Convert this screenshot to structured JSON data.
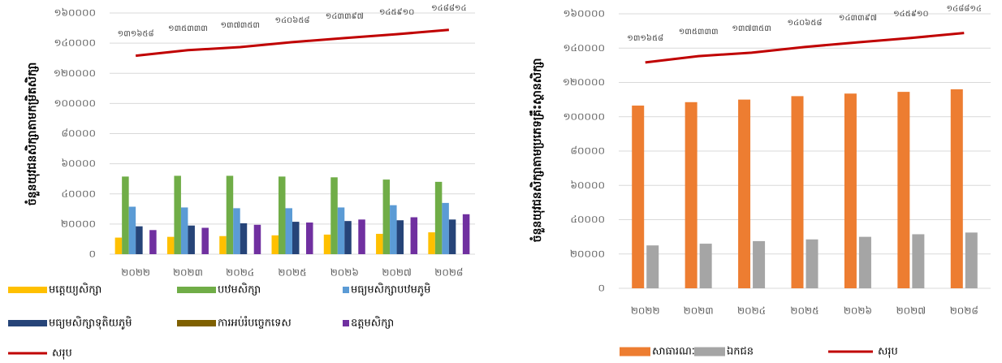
{
  "chart_data": [
    {
      "type": "bar",
      "y_label": "ចំនួនយុវជនសិក្សាតាមកម្រិតសិក្សា",
      "categories": [
        "២០២២",
        "២០២៣",
        "២០២៤",
        "២០២៥",
        "២០២៦",
        "២០២៧",
        "២០២៨"
      ],
      "ylim": [
        0,
        160000
      ],
      "yticks": [
        {
          "value": 0,
          "label": "០"
        },
        {
          "value": 20000,
          "label": "២០០០០"
        },
        {
          "value": 40000,
          "label": "៤០០០០"
        },
        {
          "value": 60000,
          "label": "៦០០០០"
        },
        {
          "value": 80000,
          "label": "៨០០០០"
        },
        {
          "value": 100000,
          "label": "១០០០០០"
        },
        {
          "value": 120000,
          "label": "១២០០០០"
        },
        {
          "value": 140000,
          "label": "១៤០០០០"
        },
        {
          "value": 160000,
          "label": "១៦០០០០"
        }
      ],
      "grid": true,
      "series": [
        {
          "name": "មត្តេយ្យសិក្សា",
          "color": "#ffc000",
          "values": [
            11000,
            11500,
            12000,
            12500,
            13000,
            13500,
            14500
          ]
        },
        {
          "name": "បឋមសិក្សា",
          "color": "#70ad47",
          "values": [
            51500,
            52000,
            52000,
            51500,
            51000,
            49500,
            48000
          ]
        },
        {
          "name": "មធ្យមសិក្សាបឋមភូមិ",
          "color": "#5b9bd5",
          "values": [
            31500,
            31000,
            30500,
            30500,
            31000,
            32500,
            34000
          ]
        },
        {
          "name": "មធ្យមសិក្សាទុតិយភូមិ",
          "color": "#264478",
          "values": [
            18500,
            19000,
            20500,
            21500,
            22000,
            22500,
            23000
          ]
        },
        {
          "name": "ការអប់រំបច្ចេកទេស",
          "color": "#7f6000",
          "values": [
            0,
            0,
            0,
            0,
            0,
            0,
            0
          ]
        },
        {
          "name": "ឧត្តមសិក្សា",
          "color": "#7030a0",
          "values": [
            16000,
            17500,
            19500,
            21000,
            23000,
            24500,
            26500
          ]
        },
        {
          "name": "សរុប",
          "type": "line",
          "color": "#c00000",
          "values": [
            131658,
            135333,
            137353,
            140658,
            143397,
            145910,
            148814
          ],
          "value_labels": [
            "១៣១៦៥៨",
            "១៣៥៣៣៣",
            "១៣៧៣៥៣",
            "១៤០៦៥៨",
            "១៤៣៣៩៧",
            "១៤៥៩១០",
            "១៤៨៨១៤"
          ]
        }
      ]
    },
    {
      "type": "bar",
      "y_label": "ចំនួនយុវជនសិក្សាតាមប្រភេទគ្រឹះស្ថានសិក្សា",
      "categories": [
        "២០២២",
        "២០២៣",
        "២០២៤",
        "២០២៥",
        "២០២៦",
        "២០២៧",
        "២០២៨"
      ],
      "ylim": [
        0,
        160000
      ],
      "yticks": [
        {
          "value": 0,
          "label": "០"
        },
        {
          "value": 20000,
          "label": "២០០០០"
        },
        {
          "value": 40000,
          "label": "៤០០០០"
        },
        {
          "value": 60000,
          "label": "៦០០០០"
        },
        {
          "value": 80000,
          "label": "៨០០០០"
        },
        {
          "value": 100000,
          "label": "១០០០០០"
        },
        {
          "value": 120000,
          "label": "១២០០០០"
        },
        {
          "value": 140000,
          "label": "១៤០០០០"
        },
        {
          "value": 160000,
          "label": "១៦០០០០"
        }
      ],
      "grid": true,
      "series": [
        {
          "name": "សាធារណៈ",
          "color": "#ed7d31",
          "values": [
            106500,
            108500,
            110000,
            112000,
            113500,
            114500,
            116000
          ]
        },
        {
          "name": "ឯកជន",
          "color": "#a5a5a5",
          "values": [
            25000,
            26000,
            27500,
            28500,
            30000,
            31500,
            32500
          ]
        },
        {
          "name": "សរុប",
          "type": "line",
          "color": "#c00000",
          "values": [
            131658,
            135333,
            137353,
            140658,
            143397,
            145910,
            148814
          ],
          "value_labels": [
            "១៣១៦៥៨",
            "១៣៥៣៣៣",
            "១៣៧៣៥៣",
            "១៤០៦៥៨",
            "១៤៣៣៩៧",
            "១៤៥៩១០",
            "១៤៨៨១៤"
          ]
        }
      ]
    }
  ]
}
